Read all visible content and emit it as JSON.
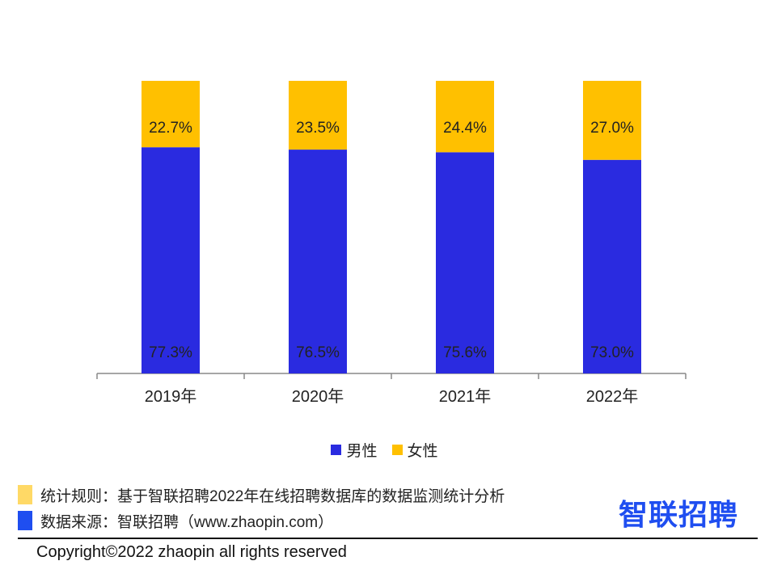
{
  "colors": {
    "male": "#2a2be0",
    "female": "#ffc000",
    "note_rule": "#ffd966",
    "note_source": "#1f4ef0",
    "logo": "#1f4ef0"
  },
  "legend": {
    "male": "男性",
    "female": "女性"
  },
  "notes": {
    "rule": "统计规则：基于智联招聘2022年在线招聘数据库的数据监测统计分析",
    "source": "数据来源：智联招聘（www.zhaopin.com）"
  },
  "logo": {
    "text": "智联招聘"
  },
  "footer": {
    "copyright": "Copyright©2022 zhaopin all rights reserved"
  },
  "chart_data": {
    "type": "bar",
    "stacked": true,
    "categories": [
      "2019年",
      "2020年",
      "2021年",
      "2022年"
    ],
    "series": [
      {
        "name": "男性",
        "values": [
          77.3,
          76.5,
          75.6,
          73.0
        ],
        "labels": [
          "77.3%",
          "76.5%",
          "75.6%",
          "73.0%"
        ]
      },
      {
        "name": "女性",
        "values": [
          22.7,
          23.5,
          24.4,
          27.0
        ],
        "labels": [
          "22.7%",
          "23.5%",
          "24.4%",
          "27.0%"
        ]
      }
    ],
    "ylim": [
      0,
      100
    ],
    "grid": false,
    "legend_position": "bottom"
  }
}
